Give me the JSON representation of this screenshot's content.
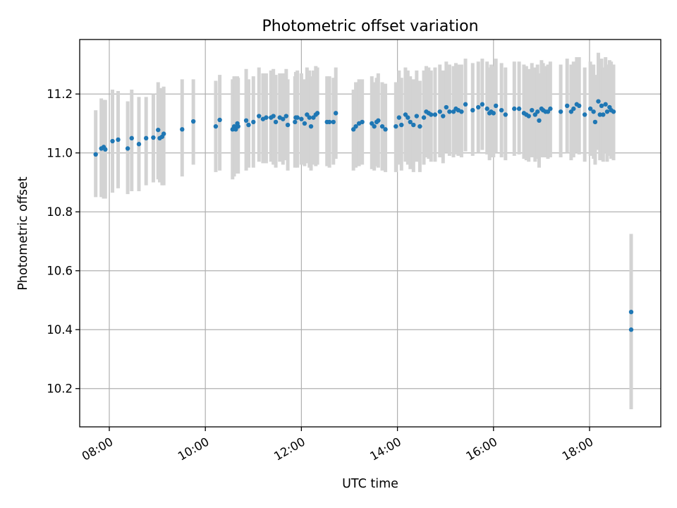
{
  "chart_data": {
    "type": "scatter",
    "title": "Photometric offset variation",
    "xlabel": "UTC time",
    "ylabel": "Photometric offset",
    "grid": true,
    "xlim": [
      "07:23",
      "19:29"
    ],
    "ylim": [
      10.07,
      11.385
    ],
    "x_ticks": [
      "08:00",
      "10:00",
      "12:00",
      "14:00",
      "16:00",
      "18:00"
    ],
    "y_ticks": [
      10.2,
      10.4,
      10.6,
      10.8,
      11.0,
      11.2
    ],
    "marker_color": "#1f77b4",
    "errorbar_color": "#d3d3d3",
    "series": [
      {
        "x": [
          "07:43",
          "07:50",
          "07:53",
          "07:55",
          "08:04",
          "08:11",
          "08:23",
          "08:28",
          "08:37",
          "08:46",
          "08:55",
          "09:01",
          "09:03",
          "09:06",
          "09:08",
          "09:31",
          "09:45",
          "10:13",
          "10:18",
          "10:34",
          "10:36",
          "10:38",
          "10:40",
          "10:41",
          "10:51",
          "10:54",
          "11:00",
          "11:07",
          "11:12",
          "11:16",
          "11:22",
          "11:25",
          "11:28",
          "11:33",
          "11:37",
          "11:41",
          "11:43",
          "11:52",
          "11:53",
          "11:55",
          "12:00",
          "12:04",
          "12:07",
          "12:10",
          "12:12",
          "12:15",
          "12:18",
          "12:20",
          "12:32",
          "12:35",
          "12:40",
          "12:43",
          "13:05",
          "13:08",
          "13:12",
          "13:16",
          "13:28",
          "13:31",
          "13:34",
          "13:36",
          "13:41",
          "13:45",
          "13:58",
          "14:02",
          "14:05",
          "14:10",
          "14:13",
          "14:16",
          "14:20",
          "14:24",
          "14:28",
          "14:33",
          "14:36",
          "14:39",
          "14:42",
          "14:47",
          "14:53",
          "14:57",
          "15:01",
          "15:05",
          "15:10",
          "15:13",
          "15:16",
          "15:20",
          "15:25",
          "15:34",
          "15:41",
          "15:46",
          "15:52",
          "15:55",
          "15:57",
          "16:00",
          "16:03",
          "16:10",
          "16:15",
          "16:26",
          "16:32",
          "16:38",
          "16:41",
          "16:44",
          "16:48",
          "16:52",
          "16:55",
          "16:57",
          "17:00",
          "17:02",
          "17:05",
          "17:08",
          "17:11",
          "17:24",
          "17:32",
          "17:37",
          "17:40",
          "17:44",
          "17:47",
          "17:54",
          "18:01",
          "18:05",
          "18:07",
          "18:11",
          "18:13",
          "18:15",
          "18:17",
          "18:20",
          "18:22",
          "18:25",
          "18:27",
          "18:30",
          "18:52",
          "18:52"
        ],
        "y": [
          10.995,
          11.015,
          11.02,
          11.012,
          11.04,
          11.045,
          11.015,
          11.05,
          11.03,
          11.05,
          11.052,
          11.078,
          11.05,
          11.055,
          11.065,
          11.08,
          11.107,
          11.09,
          11.112,
          11.08,
          11.09,
          11.08,
          11.1,
          11.09,
          11.11,
          11.095,
          11.105,
          11.125,
          11.115,
          11.12,
          11.12,
          11.125,
          11.105,
          11.12,
          11.115,
          11.125,
          11.095,
          11.105,
          11.12,
          11.12,
          11.115,
          11.1,
          11.13,
          11.12,
          11.09,
          11.12,
          11.13,
          11.135,
          11.105,
          11.105,
          11.105,
          11.135,
          11.08,
          11.09,
          11.1,
          11.105,
          11.1,
          11.09,
          11.105,
          11.11,
          11.09,
          11.08,
          11.09,
          11.12,
          11.095,
          11.13,
          11.12,
          11.105,
          11.095,
          11.125,
          11.09,
          11.12,
          11.14,
          11.135,
          11.13,
          11.13,
          11.14,
          11.125,
          11.155,
          11.14,
          11.14,
          11.15,
          11.145,
          11.14,
          11.165,
          11.145,
          11.155,
          11.165,
          11.15,
          11.135,
          11.14,
          11.135,
          11.16,
          11.145,
          11.13,
          11.15,
          11.15,
          11.135,
          11.13,
          11.125,
          11.145,
          11.13,
          11.14,
          11.11,
          11.15,
          11.145,
          11.14,
          11.14,
          11.15,
          11.14,
          11.16,
          11.14,
          11.15,
          11.165,
          11.16,
          11.13,
          11.15,
          11.14,
          11.105,
          11.175,
          11.13,
          11.16,
          11.13,
          11.165,
          11.14,
          11.155,
          11.145,
          11.14,
          10.46,
          10.4
        ],
        "err_low": [
          10.85,
          10.85,
          10.845,
          10.845,
          10.865,
          10.88,
          10.86,
          10.87,
          10.87,
          10.89,
          10.9,
          10.91,
          10.9,
          10.89,
          10.89,
          10.92,
          10.96,
          10.935,
          10.94,
          10.91,
          10.92,
          10.935,
          10.93,
          10.93,
          10.94,
          10.95,
          10.95,
          10.97,
          10.965,
          10.965,
          10.97,
          10.96,
          10.95,
          10.97,
          10.96,
          10.975,
          10.94,
          10.95,
          10.965,
          10.95,
          10.96,
          10.955,
          10.965,
          10.95,
          10.94,
          10.96,
          10.955,
          10.96,
          10.955,
          10.95,
          10.96,
          10.98,
          10.94,
          10.95,
          10.955,
          10.96,
          10.945,
          10.94,
          10.955,
          10.95,
          10.94,
          10.935,
          10.935,
          10.96,
          10.94,
          10.97,
          10.96,
          10.945,
          10.935,
          10.97,
          10.935,
          10.96,
          10.985,
          10.98,
          10.97,
          10.97,
          10.985,
          10.965,
          11.0,
          10.99,
          10.985,
          10.995,
          10.99,
          10.985,
          11.005,
          10.99,
          11.0,
          11.01,
          10.995,
          10.975,
          10.985,
          10.985,
          11.0,
          10.985,
          10.975,
          10.99,
          10.995,
          10.98,
          10.975,
          10.97,
          10.985,
          10.97,
          10.98,
          10.95,
          10.985,
          10.985,
          10.985,
          10.98,
          10.985,
          10.985,
          11.0,
          10.975,
          10.985,
          11.0,
          10.995,
          10.97,
          10.99,
          10.98,
          10.96,
          11.01,
          10.975,
          10.99,
          10.97,
          11.0,
          10.97,
          10.99,
          10.98,
          10.975,
          10.2,
          10.13
        ],
        "err_high": [
          11.145,
          11.185,
          11.18,
          11.18,
          11.215,
          11.21,
          11.175,
          11.215,
          11.19,
          11.19,
          11.2,
          11.24,
          11.22,
          11.22,
          11.225,
          11.25,
          11.25,
          11.245,
          11.265,
          11.25,
          11.26,
          11.24,
          11.26,
          11.255,
          11.285,
          11.25,
          11.26,
          11.29,
          11.27,
          11.27,
          11.28,
          11.285,
          11.265,
          11.27,
          11.27,
          11.285,
          11.25,
          11.26,
          11.275,
          11.28,
          11.27,
          11.25,
          11.29,
          11.28,
          11.26,
          11.28,
          11.295,
          11.29,
          11.26,
          11.26,
          11.255,
          11.29,
          11.215,
          11.24,
          11.25,
          11.25,
          11.26,
          11.24,
          11.255,
          11.27,
          11.24,
          11.235,
          11.24,
          11.28,
          11.255,
          11.29,
          11.28,
          11.26,
          11.25,
          11.28,
          11.245,
          11.28,
          11.295,
          11.29,
          11.28,
          11.29,
          11.3,
          11.28,
          11.31,
          11.3,
          11.295,
          11.305,
          11.3,
          11.3,
          11.32,
          11.305,
          11.31,
          11.32,
          11.31,
          11.29,
          11.3,
          11.295,
          11.32,
          11.305,
          11.29,
          11.31,
          11.31,
          11.3,
          11.295,
          11.285,
          11.305,
          11.29,
          11.3,
          11.27,
          11.315,
          11.305,
          11.295,
          11.3,
          11.31,
          11.3,
          11.32,
          11.3,
          11.31,
          11.325,
          11.325,
          11.29,
          11.31,
          11.3,
          11.265,
          11.34,
          11.295,
          11.32,
          11.29,
          11.325,
          11.3,
          11.315,
          11.31,
          11.3,
          10.725,
          10.675
        ]
      }
    ]
  }
}
